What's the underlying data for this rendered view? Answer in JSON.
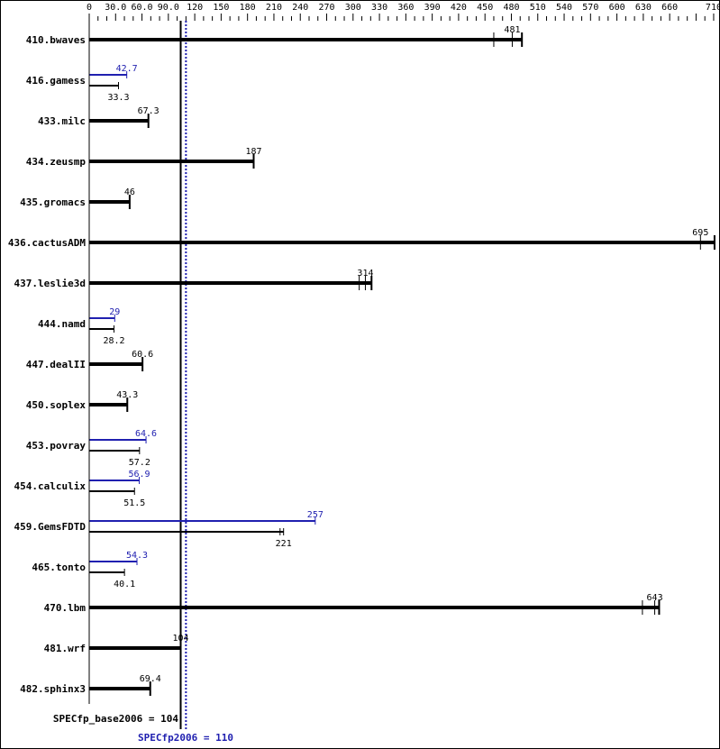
{
  "chart_data": {
    "type": "bar",
    "orientation": "horizontal",
    "xlim": [
      0,
      710
    ],
    "x_ticks": [
      "0",
      "30.0",
      "60.0",
      "90.0",
      "120",
      "150",
      "180",
      "210",
      "240",
      "270",
      "300",
      "330",
      "360",
      "390",
      "420",
      "450",
      "480",
      "510",
      "540",
      "570",
      "600",
      "630",
      "660",
      "710"
    ],
    "x_tick_values": [
      0,
      30,
      60,
      90,
      120,
      150,
      180,
      210,
      240,
      270,
      300,
      330,
      360,
      390,
      420,
      450,
      480,
      510,
      540,
      570,
      600,
      630,
      660,
      710
    ],
    "colors": {
      "base": "#000000",
      "peak": "#2020b0"
    },
    "benchmarks": [
      {
        "name": "410.bwaves",
        "base": 481,
        "base_runs": [
          460,
          481,
          492
        ]
      },
      {
        "name": "416.gamess",
        "base": 33.3,
        "peak": 42.7
      },
      {
        "name": "433.milc",
        "base": 67.3
      },
      {
        "name": "434.zeusmp",
        "base": 187
      },
      {
        "name": "435.gromacs",
        "base": 46.0
      },
      {
        "name": "436.cactusADM",
        "base": 695,
        "base_runs": [
          695,
          711
        ]
      },
      {
        "name": "437.leslie3d",
        "base": 314,
        "base_runs": [
          307,
          314,
          321
        ]
      },
      {
        "name": "444.namd",
        "base": 28.2,
        "peak": 29.0
      },
      {
        "name": "447.dealII",
        "base": 60.6
      },
      {
        "name": "450.soplex",
        "base": 43.3
      },
      {
        "name": "453.povray",
        "base": 57.2,
        "peak": 64.6
      },
      {
        "name": "454.calculix",
        "base": 51.5,
        "peak": 56.9
      },
      {
        "name": "459.GemsFDTD",
        "base": 221,
        "peak": 257,
        "base_runs": [
          217,
          221
        ]
      },
      {
        "name": "465.tonto",
        "base": 40.1,
        "peak": 54.3
      },
      {
        "name": "470.lbm",
        "base": 643,
        "base_runs": [
          629,
          643,
          648
        ]
      },
      {
        "name": "481.wrf",
        "base": 104
      },
      {
        "name": "482.sphinx3",
        "base": 69.4
      }
    ],
    "base_label": "SPECfp_base2006 = 104",
    "base_mean": 104,
    "peak_label": "SPECfp2006 = 110",
    "peak_mean": 110
  }
}
